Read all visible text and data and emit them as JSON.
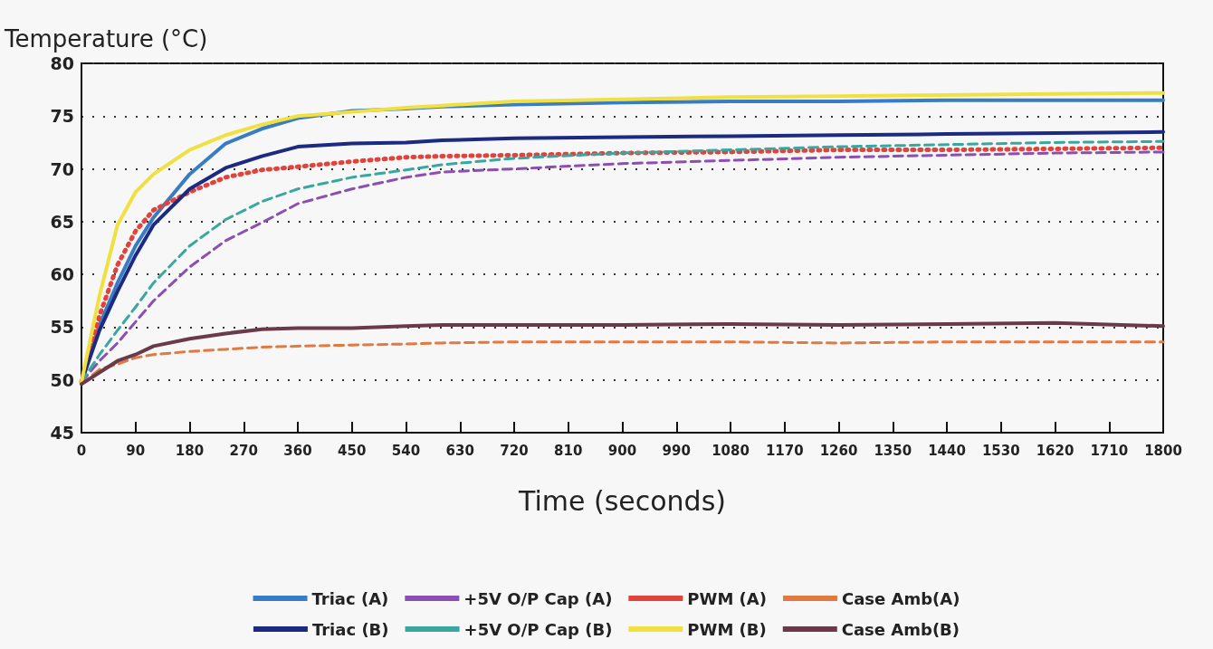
{
  "chart_data": {
    "type": "line",
    "ylabel": "Temperature (°C)",
    "xlabel": "Time (seconds)",
    "x": [
      0,
      30,
      60,
      90,
      120,
      180,
      240,
      300,
      360,
      450,
      540,
      600,
      720,
      900,
      1080,
      1260,
      1440,
      1620,
      1800
    ],
    "xlim": [
      0,
      1800
    ],
    "xticks": [
      0,
      90,
      180,
      270,
      360,
      450,
      540,
      630,
      720,
      810,
      900,
      990,
      1080,
      1170,
      1260,
      1350,
      1440,
      1530,
      1620,
      1710,
      1800
    ],
    "ylim": [
      45,
      80
    ],
    "yticks": [
      45,
      50,
      55,
      60,
      65,
      70,
      75,
      80
    ],
    "grid": "y",
    "legend": "bottom",
    "marker": "none",
    "series": [
      {
        "name": "Triac (A)",
        "color": "#3a7cc4",
        "line_style": "solid",
        "values": [
          49.8,
          55.2,
          59.2,
          62.7,
          65.4,
          69.5,
          72.4,
          73.8,
          74.8,
          75.5,
          75.7,
          75.9,
          76.1,
          76.3,
          76.4,
          76.4,
          76.5,
          76.5,
          76.5
        ]
      },
      {
        "name": "+5V O/P Cap (A)",
        "color": "#8a4fb0",
        "line_style": "dashed",
        "values": [
          49.8,
          51.8,
          53.5,
          55.5,
          57.5,
          60.7,
          63.2,
          64.9,
          66.7,
          68.1,
          69.2,
          69.7,
          70.0,
          70.5,
          70.8,
          71.1,
          71.3,
          71.5,
          71.6
        ]
      },
      {
        "name": "PWM (A)",
        "color": "#e0423c",
        "line_style": "dotted",
        "values": [
          49.8,
          56.1,
          60.9,
          64.1,
          66.1,
          67.8,
          69.2,
          69.9,
          70.2,
          70.7,
          71.1,
          71.2,
          71.3,
          71.5,
          71.6,
          71.8,
          71.8,
          71.9,
          72.0
        ]
      },
      {
        "name": "Case Amb(A)",
        "color": "#e07a40",
        "line_style": "dashed",
        "values": [
          49.6,
          51.0,
          51.5,
          52.1,
          52.4,
          52.7,
          52.9,
          53.1,
          53.2,
          53.3,
          53.4,
          53.5,
          53.6,
          53.6,
          53.6,
          53.5,
          53.6,
          53.6,
          53.6
        ]
      },
      {
        "name": "Triac (B)",
        "color": "#1c2a82",
        "line_style": "solid",
        "values": [
          49.8,
          54.7,
          58.4,
          61.8,
          64.7,
          68.1,
          70.1,
          71.2,
          72.1,
          72.4,
          72.5,
          72.7,
          72.9,
          73.0,
          73.1,
          73.2,
          73.3,
          73.4,
          73.5
        ]
      },
      {
        "name": "+5V O/P Cap (B)",
        "color": "#3aa6a0",
        "line_style": "dashed",
        "values": [
          49.8,
          52.4,
          54.7,
          56.9,
          59.2,
          62.7,
          65.2,
          66.9,
          68.1,
          69.2,
          69.9,
          70.4,
          71.0,
          71.5,
          71.8,
          72.1,
          72.3,
          72.5,
          72.6
        ]
      },
      {
        "name": "PWM (B)",
        "color": "#f0e040",
        "line_style": "solid",
        "values": [
          49.8,
          58.0,
          64.7,
          67.8,
          69.5,
          71.8,
          73.2,
          74.2,
          75.0,
          75.4,
          75.8,
          76.0,
          76.4,
          76.6,
          76.8,
          76.9,
          77.0,
          77.1,
          77.2
        ]
      },
      {
        "name": "Case Amb(B)",
        "color": "#6a3a4a",
        "line_style": "solid",
        "values": [
          49.6,
          50.7,
          51.8,
          52.4,
          53.2,
          53.9,
          54.4,
          54.8,
          54.9,
          54.9,
          55.1,
          55.2,
          55.2,
          55.2,
          55.3,
          55.2,
          55.3,
          55.4,
          55.1
        ]
      }
    ]
  }
}
